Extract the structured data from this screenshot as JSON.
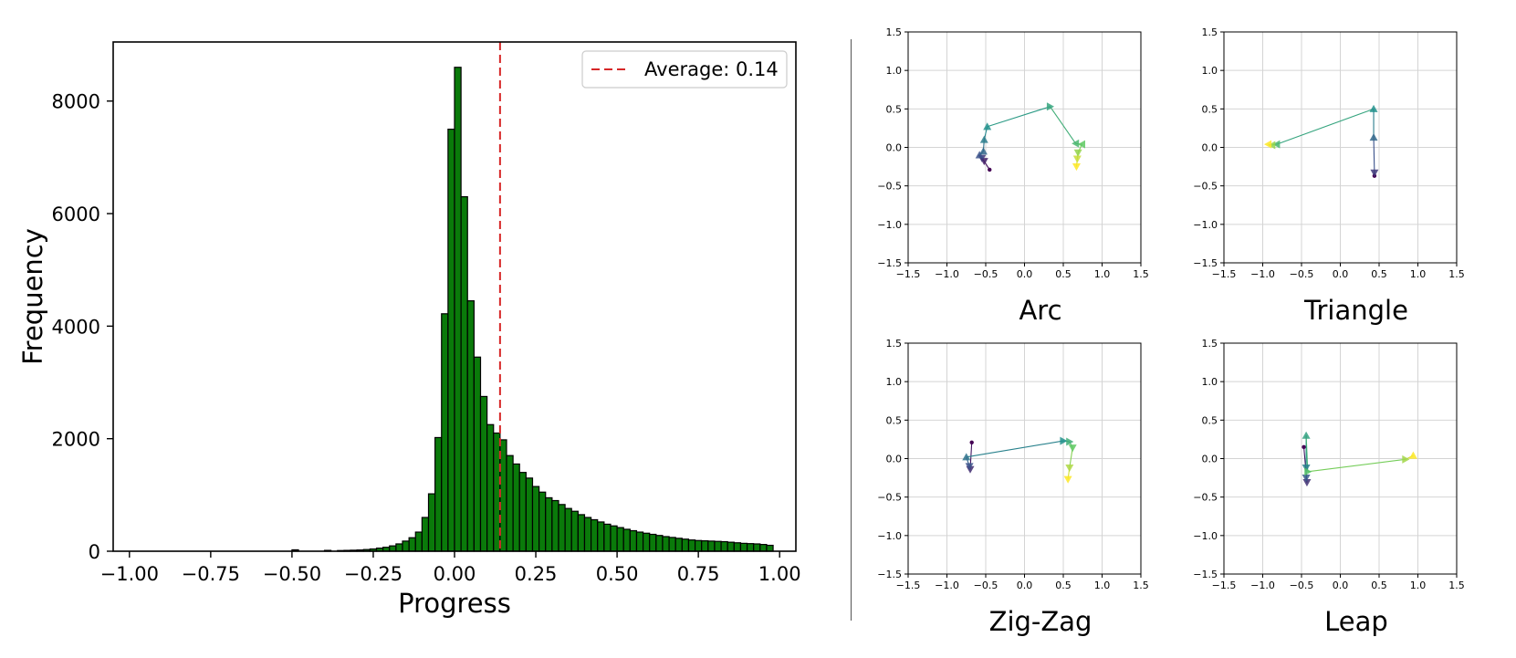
{
  "chart_data": [
    {
      "type": "bar",
      "subtype": "histogram",
      "xlabel": "Progress",
      "ylabel": "Frequency",
      "xlim": [
        -1.05,
        1.05
      ],
      "ylim": [
        0,
        9050
      ],
      "x_ticks": [
        -1.0,
        -0.75,
        -0.5,
        -0.25,
        0.0,
        0.25,
        0.5,
        0.75,
        1.0
      ],
      "x_tick_labels": [
        "−1.00",
        "−0.75",
        "−0.50",
        "−0.25",
        "0.00",
        "0.25",
        "0.50",
        "0.75",
        "1.00"
      ],
      "y_ticks": [
        0,
        2000,
        4000,
        6000,
        8000
      ],
      "y_tick_labels": [
        "0",
        "2000",
        "4000",
        "6000",
        "8000"
      ],
      "bar_color": "#0a7a0a",
      "bar_edge_color": "#000000",
      "bin_width": 0.02,
      "bins": [
        {
          "x": -0.5,
          "y": 25
        },
        {
          "x": -0.4,
          "y": 15
        },
        {
          "x": -0.36,
          "y": 12
        },
        {
          "x": -0.34,
          "y": 15
        },
        {
          "x": -0.32,
          "y": 18
        },
        {
          "x": -0.3,
          "y": 22
        },
        {
          "x": -0.28,
          "y": 30
        },
        {
          "x": -0.26,
          "y": 40
        },
        {
          "x": -0.24,
          "y": 55
        },
        {
          "x": -0.22,
          "y": 70
        },
        {
          "x": -0.2,
          "y": 95
        },
        {
          "x": -0.18,
          "y": 130
        },
        {
          "x": -0.16,
          "y": 180
        },
        {
          "x": -0.14,
          "y": 240
        },
        {
          "x": -0.12,
          "y": 340
        },
        {
          "x": -0.1,
          "y": 600
        },
        {
          "x": -0.08,
          "y": 1020
        },
        {
          "x": -0.06,
          "y": 2020
        },
        {
          "x": -0.04,
          "y": 4220
        },
        {
          "x": -0.02,
          "y": 7500
        },
        {
          "x": 0.0,
          "y": 8600
        },
        {
          "x": 0.02,
          "y": 6300
        },
        {
          "x": 0.04,
          "y": 4450
        },
        {
          "x": 0.06,
          "y": 3450
        },
        {
          "x": 0.08,
          "y": 2750
        },
        {
          "x": 0.1,
          "y": 2250
        },
        {
          "x": 0.12,
          "y": 2100
        },
        {
          "x": 0.14,
          "y": 1980
        },
        {
          "x": 0.16,
          "y": 1700
        },
        {
          "x": 0.18,
          "y": 1550
        },
        {
          "x": 0.2,
          "y": 1400
        },
        {
          "x": 0.22,
          "y": 1300
        },
        {
          "x": 0.24,
          "y": 1150
        },
        {
          "x": 0.26,
          "y": 1050
        },
        {
          "x": 0.28,
          "y": 950
        },
        {
          "x": 0.3,
          "y": 900
        },
        {
          "x": 0.32,
          "y": 830
        },
        {
          "x": 0.34,
          "y": 760
        },
        {
          "x": 0.36,
          "y": 710
        },
        {
          "x": 0.38,
          "y": 650
        },
        {
          "x": 0.4,
          "y": 600
        },
        {
          "x": 0.42,
          "y": 560
        },
        {
          "x": 0.44,
          "y": 520
        },
        {
          "x": 0.46,
          "y": 480
        },
        {
          "x": 0.48,
          "y": 450
        },
        {
          "x": 0.5,
          "y": 420
        },
        {
          "x": 0.52,
          "y": 390
        },
        {
          "x": 0.54,
          "y": 365
        },
        {
          "x": 0.56,
          "y": 340
        },
        {
          "x": 0.58,
          "y": 320
        },
        {
          "x": 0.6,
          "y": 300
        },
        {
          "x": 0.62,
          "y": 280
        },
        {
          "x": 0.64,
          "y": 260
        },
        {
          "x": 0.66,
          "y": 245
        },
        {
          "x": 0.68,
          "y": 230
        },
        {
          "x": 0.7,
          "y": 215
        },
        {
          "x": 0.72,
          "y": 200
        },
        {
          "x": 0.74,
          "y": 190
        },
        {
          "x": 0.76,
          "y": 185
        },
        {
          "x": 0.78,
          "y": 180
        },
        {
          "x": 0.8,
          "y": 175
        },
        {
          "x": 0.82,
          "y": 170
        },
        {
          "x": 0.84,
          "y": 160
        },
        {
          "x": 0.86,
          "y": 150
        },
        {
          "x": 0.88,
          "y": 140
        },
        {
          "x": 0.9,
          "y": 135
        },
        {
          "x": 0.92,
          "y": 130
        },
        {
          "x": 0.94,
          "y": 120
        },
        {
          "x": 0.96,
          "y": 105
        }
      ],
      "average": 0.14,
      "average_color": "#d62728",
      "legend": {
        "label": "Average: 0.14",
        "position": "top-right"
      }
    },
    {
      "type": "scatter",
      "subtype": "trajectory",
      "title": "Arc",
      "xlim": [
        -1.5,
        1.5
      ],
      "ylim": [
        -1.5,
        1.5
      ],
      "x_ticks": [
        -1.5,
        -1.0,
        -0.5,
        0.0,
        0.5,
        1.0,
        1.5
      ],
      "x_tick_labels": [
        "−1.5",
        "−1.0",
        "−0.5",
        "0.0",
        "0.5",
        "1.0",
        "1.5"
      ],
      "y_ticks": [
        -1.5,
        -1.0,
        -0.5,
        0.0,
        0.5,
        1.0,
        1.5
      ],
      "y_tick_labels": [
        "−1.5",
        "−1.0",
        "−0.5",
        "0.0",
        "0.5",
        "1.0",
        "1.5"
      ],
      "grid": true,
      "points": [
        {
          "x": -0.45,
          "y": -0.29,
          "m": "dot"
        },
        {
          "x": -0.52,
          "y": -0.18,
          "m": "down"
        },
        {
          "x": -0.55,
          "y": -0.14,
          "m": "down"
        },
        {
          "x": -0.58,
          "y": -0.1,
          "m": "up"
        },
        {
          "x": -0.53,
          "y": -0.05,
          "m": "up"
        },
        {
          "x": -0.52,
          "y": 0.1,
          "m": "up"
        },
        {
          "x": -0.48,
          "y": 0.27,
          "m": "up"
        },
        {
          "x": 0.33,
          "y": 0.53,
          "m": "right"
        },
        {
          "x": 0.66,
          "y": 0.05,
          "m": "left"
        },
        {
          "x": 0.74,
          "y": 0.04,
          "m": "left"
        },
        {
          "x": 0.69,
          "y": -0.07,
          "m": "down"
        },
        {
          "x": 0.68,
          "y": -0.15,
          "m": "down"
        },
        {
          "x": 0.67,
          "y": -0.25,
          "m": "down"
        }
      ]
    },
    {
      "type": "scatter",
      "subtype": "trajectory",
      "title": "Triangle",
      "xlim": [
        -1.5,
        1.5
      ],
      "ylim": [
        -1.5,
        1.5
      ],
      "x_ticks": [
        -1.5,
        -1.0,
        -0.5,
        0.0,
        0.5,
        1.0,
        1.5
      ],
      "x_tick_labels": [
        "−1.5",
        "−1.0",
        "−0.5",
        "0.0",
        "0.5",
        "1.0",
        "1.5"
      ],
      "y_ticks": [
        -1.5,
        -1.0,
        -0.5,
        0.0,
        0.5,
        1.0,
        1.5
      ],
      "y_tick_labels": [
        "−1.5",
        "−1.0",
        "−0.5",
        "0.0",
        "0.5",
        "1.0",
        "1.5"
      ],
      "grid": true,
      "points": [
        {
          "x": 0.44,
          "y": -0.37,
          "m": "dot"
        },
        {
          "x": 0.44,
          "y": -0.33,
          "m": "down"
        },
        {
          "x": 0.43,
          "y": 0.13,
          "m": "up"
        },
        {
          "x": 0.43,
          "y": 0.5,
          "m": "up"
        },
        {
          "x": -0.82,
          "y": 0.04,
          "m": "left"
        },
        {
          "x": -0.88,
          "y": 0.03,
          "m": "left"
        },
        {
          "x": -0.93,
          "y": 0.04,
          "m": "left"
        }
      ]
    },
    {
      "type": "scatter",
      "subtype": "trajectory",
      "title": "Zig-Zag",
      "xlim": [
        -1.5,
        1.5
      ],
      "ylim": [
        -1.5,
        1.5
      ],
      "x_ticks": [
        -1.5,
        -1.0,
        -0.5,
        0.0,
        0.5,
        1.0,
        1.5
      ],
      "x_tick_labels": [
        "−1.5",
        "−1.0",
        "−0.5",
        "0.0",
        "0.5",
        "1.0",
        "1.5"
      ],
      "y_ticks": [
        -1.5,
        -1.0,
        -0.5,
        0.0,
        0.5,
        1.0,
        1.5
      ],
      "y_tick_labels": [
        "−1.5",
        "−1.0",
        "−0.5",
        "0.0",
        "0.5",
        "1.0",
        "1.5"
      ],
      "grid": true,
      "points": [
        {
          "x": -0.68,
          "y": 0.21,
          "m": "dot"
        },
        {
          "x": -0.7,
          "y": -0.14,
          "m": "down"
        },
        {
          "x": -0.71,
          "y": -0.1,
          "m": "down"
        },
        {
          "x": -0.75,
          "y": 0.02,
          "m": "up"
        },
        {
          "x": 0.5,
          "y": 0.23,
          "m": "right"
        },
        {
          "x": 0.58,
          "y": 0.22,
          "m": "right"
        },
        {
          "x": 0.62,
          "y": 0.14,
          "m": "down"
        },
        {
          "x": 0.58,
          "y": -0.12,
          "m": "down"
        },
        {
          "x": 0.56,
          "y": -0.27,
          "m": "down"
        }
      ]
    },
    {
      "type": "scatter",
      "subtype": "trajectory",
      "title": "Leap",
      "xlim": [
        -1.5,
        1.5
      ],
      "ylim": [
        -1.5,
        1.5
      ],
      "x_ticks": [
        -1.5,
        -1.0,
        -0.5,
        0.0,
        0.5,
        1.0,
        1.5
      ],
      "x_tick_labels": [
        "−1.5",
        "−1.0",
        "−0.5",
        "0.0",
        "0.5",
        "1.0",
        "1.5"
      ],
      "y_ticks": [
        -1.5,
        -1.0,
        -0.5,
        0.0,
        0.5,
        1.0,
        1.5
      ],
      "y_tick_labels": [
        "−1.5",
        "−1.0",
        "−0.5",
        "0.0",
        "0.5",
        "1.0",
        "1.5"
      ],
      "grid": true,
      "points": [
        {
          "x": -0.47,
          "y": 0.15,
          "m": "dot"
        },
        {
          "x": -0.43,
          "y": -0.31,
          "m": "down"
        },
        {
          "x": -0.44,
          "y": -0.25,
          "m": "down"
        },
        {
          "x": -0.44,
          "y": -0.12,
          "m": "down"
        },
        {
          "x": -0.44,
          "y": 0.3,
          "m": "up"
        },
        {
          "x": -0.42,
          "y": -0.17,
          "m": "right"
        },
        {
          "x": 0.84,
          "y": -0.01,
          "m": "right"
        },
        {
          "x": 0.94,
          "y": 0.04,
          "m": "up"
        }
      ]
    }
  ]
}
